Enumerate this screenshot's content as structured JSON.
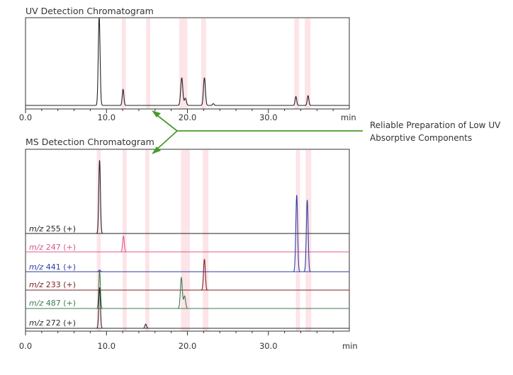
{
  "chart_data": [
    {
      "type": "line",
      "title": "UV Detection Chromatogram",
      "x_unit": "min",
      "xlim": [
        0,
        40
      ],
      "x_ticks": [
        "0.0",
        "10.0",
        "20.0",
        "30.0"
      ],
      "highlight_bands_min": [
        [
          11.9,
          12.4
        ],
        [
          14.9,
          15.4
        ],
        [
          19.0,
          20.0
        ],
        [
          21.7,
          22.3
        ],
        [
          33.2,
          33.8
        ],
        [
          34.5,
          35.2
        ]
      ],
      "series": [
        {
          "color": "#222222",
          "baseline": 0.02,
          "peaks": [
            {
              "rt": 9.1,
              "h": 1.0,
              "w": 0.11
            },
            {
              "rt": 12.05,
              "h": 0.18,
              "w": 0.1
            },
            {
              "rt": 19.3,
              "h": 0.31,
              "w": 0.13
            },
            {
              "rt": 19.75,
              "h": 0.08,
              "w": 0.12
            },
            {
              "rt": 22.1,
              "h": 0.31,
              "w": 0.12
            },
            {
              "rt": 23.2,
              "h": 0.02,
              "w": 0.1
            },
            {
              "rt": 33.4,
              "h": 0.1,
              "w": 0.1
            },
            {
              "rt": 34.9,
              "h": 0.11,
              "w": 0.1
            }
          ]
        }
      ]
    },
    {
      "type": "line",
      "title": "MS Detection Chromatogram",
      "x_unit": "min",
      "xlim": [
        0,
        40
      ],
      "x_ticks": [
        "0.0",
        "10.0",
        "20.0",
        "30.0"
      ],
      "highlight_bands_min": [
        [
          8.8,
          9.3
        ],
        [
          12.0,
          12.5
        ],
        [
          14.8,
          15.3
        ],
        [
          19.2,
          20.3
        ],
        [
          21.9,
          22.6
        ],
        [
          33.4,
          33.9
        ],
        [
          34.6,
          35.3
        ]
      ],
      "series": [
        {
          "name": "m/z 255 (+)",
          "mz": "m/z",
          "ion": " 255 (+)",
          "color": "#222222",
          "label_color": "#222222",
          "peaks": [
            {
              "rt": 9.15,
              "h": 0.88,
              "w": 0.1
            }
          ]
        },
        {
          "name": "m/z 247 (+)",
          "mz": "m/z",
          "ion": " 247 (+)",
          "color": "#e05a8f",
          "label_color": "#d4578b",
          "peaks": [
            {
              "rt": 12.1,
              "h": 0.19,
              "w": 0.1
            }
          ]
        },
        {
          "name": "m/z 441 (+)",
          "mz": "m/z",
          "ion": " 441 (+)",
          "color": "#2f3e9e",
          "label_color": "#2f3e9e",
          "peaks": [
            {
              "rt": 9.15,
              "h": 0.02,
              "w": 0.1
            },
            {
              "rt": 33.5,
              "h": 0.92,
              "w": 0.11
            },
            {
              "rt": 34.8,
              "h": 0.86,
              "w": 0.11
            }
          ]
        },
        {
          "name": "m/z 233 (+)",
          "mz": "m/z",
          "ion": " 233 (+)",
          "color": "#7a2323",
          "label_color": "#7a2323",
          "peaks": [
            {
              "rt": 22.1,
              "h": 0.37,
              "w": 0.11
            }
          ]
        },
        {
          "name": "m/z 487 (+)",
          "mz": "m/z",
          "ion": " 487 (+)",
          "color": "#3e7b4f",
          "label_color": "#3e7b4f",
          "peaks": [
            {
              "rt": 9.15,
              "h": 0.45,
              "w": 0.1
            },
            {
              "rt": 19.25,
              "h": 0.37,
              "w": 0.12
            },
            {
              "rt": 19.65,
              "h": 0.15,
              "w": 0.12
            }
          ]
        },
        {
          "name": "m/z 272 (+)",
          "mz": "m/z",
          "ion": " 272 (+)",
          "color": "#2a2a2a",
          "label_color": "#2a2a2a",
          "peaks": [
            {
              "rt": 9.15,
              "h": 0.49,
              "w": 0.1
            },
            {
              "rt": 14.85,
              "h": 0.05,
              "w": 0.1
            }
          ]
        }
      ]
    }
  ],
  "annotation": {
    "line1": "Reliable Preparation of Low UV",
    "line2": "Absorptive Components",
    "color": "#4a9a2c"
  }
}
